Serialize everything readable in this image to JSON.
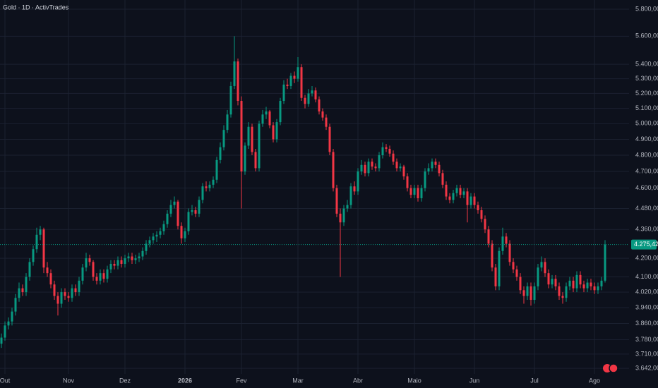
{
  "chart_data": {
    "type": "candlestick",
    "title": "Gold · 1D · ActivTrades",
    "log_scale": true,
    "grid": true,
    "up_color": "#089981",
    "down_color": "#f23645",
    "ylim": [
      3583,
      5869
    ],
    "yticks": [
      {
        "value": 3642,
        "label": "3.642,00"
      },
      {
        "value": 3710,
        "label": "3.710,00"
      },
      {
        "value": 3780,
        "label": "3.780,00"
      },
      {
        "value": 3860,
        "label": "3.860,00"
      },
      {
        "value": 3940,
        "label": "3.940,00"
      },
      {
        "value": 4020,
        "label": "4.020,00"
      },
      {
        "value": 4100,
        "label": "4.100,00"
      },
      {
        "value": 4200,
        "label": "4.200,00"
      },
      {
        "value": 4360,
        "label": "4.360,00"
      },
      {
        "value": 4480,
        "label": "4.480,00"
      },
      {
        "value": 4600,
        "label": "4.600,00"
      },
      {
        "value": 4700,
        "label": "4.700,00"
      },
      {
        "value": 4800,
        "label": "4.800,00"
      },
      {
        "value": 4900,
        "label": "4.900,00"
      },
      {
        "value": 5000,
        "label": "5.000,00"
      },
      {
        "value": 5100,
        "label": "5.100,00"
      },
      {
        "value": 5200,
        "label": "5.200,00"
      },
      {
        "value": 5300,
        "label": "5.300,00"
      },
      {
        "value": 5400,
        "label": "5.400,00"
      },
      {
        "value": 5600,
        "label": "5.600,00"
      },
      {
        "value": 5800,
        "label": "5.800,00"
      }
    ],
    "xticks": [
      {
        "value": 1,
        "label": "Out"
      },
      {
        "value": 19,
        "label": "Nov"
      },
      {
        "value": 35,
        "label": "Dez"
      },
      {
        "value": 52,
        "label": "2026"
      },
      {
        "value": 68,
        "label": "Fev"
      },
      {
        "value": 84,
        "label": "Mar"
      },
      {
        "value": 101,
        "label": "Abr"
      },
      {
        "value": 117,
        "label": "Maio"
      },
      {
        "value": 134,
        "label": "Jun"
      },
      {
        "value": 151,
        "label": "Jul"
      },
      {
        "value": 168,
        "label": "Ago"
      }
    ],
    "last_price": {
      "value": 4275.42,
      "label": "4.275,42"
    },
    "candles": [
      [
        3760,
        3810,
        3740,
        3790
      ],
      [
        3790,
        3870,
        3775,
        3850
      ],
      [
        3850,
        3890,
        3830,
        3870
      ],
      [
        3870,
        3940,
        3850,
        3920
      ],
      [
        3920,
        4010,
        3900,
        3990
      ],
      [
        3990,
        4070,
        3970,
        4040
      ],
      [
        4040,
        4060,
        4000,
        4020
      ],
      [
        4020,
        4120,
        4000,
        4100
      ],
      [
        4100,
        4200,
        4080,
        4180
      ],
      [
        4180,
        4270,
        4160,
        4250
      ],
      [
        4250,
        4370,
        4230,
        4330
      ],
      [
        4330,
        4380,
        4300,
        4360
      ],
      [
        4360,
        4370,
        4120,
        4150
      ],
      [
        4150,
        4180,
        4100,
        4120
      ],
      [
        4120,
        4140,
        4040,
        4060
      ],
      [
        4060,
        4080,
        3980,
        4000
      ],
      [
        4000,
        4020,
        3900,
        3960
      ],
      [
        3960,
        4040,
        3940,
        4020
      ],
      [
        4020,
        4040,
        3980,
        4000
      ],
      [
        4000,
        4020,
        3970,
        3990
      ],
      [
        3990,
        4060,
        3970,
        4040
      ],
      [
        4040,
        4060,
        4000,
        4020
      ],
      [
        4020,
        4100,
        4000,
        4080
      ],
      [
        4080,
        4170,
        4060,
        4150
      ],
      [
        4150,
        4230,
        4130,
        4200
      ],
      [
        4200,
        4220,
        4160,
        4180
      ],
      [
        4180,
        4190,
        4080,
        4100
      ],
      [
        4100,
        4120,
        4060,
        4080
      ],
      [
        4080,
        4140,
        4060,
        4120
      ],
      [
        4120,
        4140,
        4070,
        4090
      ],
      [
        4090,
        4160,
        4070,
        4140
      ],
      [
        4140,
        4190,
        4120,
        4170
      ],
      [
        4170,
        4190,
        4140,
        4160
      ],
      [
        4160,
        4210,
        4140,
        4190
      ],
      [
        4190,
        4210,
        4150,
        4170
      ],
      [
        4170,
        4220,
        4150,
        4200
      ],
      [
        4200,
        4230,
        4180,
        4210
      ],
      [
        4210,
        4230,
        4170,
        4190
      ],
      [
        4190,
        4220,
        4170,
        4200
      ],
      [
        4200,
        4230,
        4180,
        4210
      ],
      [
        4210,
        4260,
        4190,
        4240
      ],
      [
        4240,
        4300,
        4220,
        4280
      ],
      [
        4280,
        4320,
        4260,
        4300
      ],
      [
        4300,
        4340,
        4280,
        4320
      ],
      [
        4320,
        4350,
        4290,
        4330
      ],
      [
        4330,
        4370,
        4310,
        4350
      ],
      [
        4350,
        4410,
        4330,
        4390
      ],
      [
        4390,
        4470,
        4370,
        4450
      ],
      [
        4450,
        4530,
        4430,
        4500
      ],
      [
        4500,
        4550,
        4480,
        4520
      ],
      [
        4520,
        4530,
        4360,
        4380
      ],
      [
        4380,
        4400,
        4280,
        4310
      ],
      [
        4310,
        4370,
        4290,
        4350
      ],
      [
        4350,
        4480,
        4330,
        4460
      ],
      [
        4460,
        4500,
        4440,
        4470
      ],
      [
        4470,
        4490,
        4430,
        4450
      ],
      [
        4450,
        4550,
        4430,
        4530
      ],
      [
        4530,
        4630,
        4510,
        4610
      ],
      [
        4610,
        4640,
        4580,
        4600
      ],
      [
        4600,
        4640,
        4580,
        4620
      ],
      [
        4620,
        4670,
        4600,
        4650
      ],
      [
        4650,
        4790,
        4630,
        4770
      ],
      [
        4770,
        4880,
        4750,
        4850
      ],
      [
        4850,
        4990,
        4830,
        4960
      ],
      [
        4960,
        5090,
        4940,
        5060
      ],
      [
        5060,
        5280,
        5040,
        5250
      ],
      [
        5250,
        5600,
        5230,
        5420
      ],
      [
        5420,
        5440,
        5120,
        5150
      ],
      [
        5150,
        5180,
        4480,
        4700
      ],
      [
        4700,
        4880,
        4680,
        4860
      ],
      [
        4860,
        5010,
        4840,
        4980
      ],
      [
        4980,
        5000,
        4800,
        4820
      ],
      [
        4820,
        4840,
        4700,
        4720
      ],
      [
        4720,
        5020,
        4700,
        5000
      ],
      [
        5000,
        5090,
        4980,
        5060
      ],
      [
        5060,
        5110,
        5030,
        5080
      ],
      [
        5080,
        5090,
        4970,
        4990
      ],
      [
        4990,
        5010,
        4880,
        4900
      ],
      [
        4900,
        5030,
        4880,
        5010
      ],
      [
        5010,
        5170,
        4990,
        5150
      ],
      [
        5150,
        5290,
        5130,
        5260
      ],
      [
        5260,
        5300,
        5230,
        5250
      ],
      [
        5250,
        5340,
        5230,
        5320
      ],
      [
        5320,
        5350,
        5270,
        5300
      ],
      [
        5300,
        5450,
        5280,
        5380
      ],
      [
        5380,
        5400,
        5150,
        5170
      ],
      [
        5170,
        5190,
        5100,
        5130
      ],
      [
        5130,
        5230,
        5110,
        5200
      ],
      [
        5200,
        5250,
        5180,
        5220
      ],
      [
        5220,
        5240,
        5140,
        5160
      ],
      [
        5160,
        5180,
        5060,
        5080
      ],
      [
        5080,
        5100,
        5020,
        5040
      ],
      [
        5040,
        5060,
        4960,
        4980
      ],
      [
        4980,
        5000,
        4800,
        4820
      ],
      [
        4820,
        4840,
        4580,
        4600
      ],
      [
        4600,
        4620,
        4430,
        4450
      ],
      [
        4450,
        4480,
        4100,
        4400
      ],
      [
        4400,
        4500,
        4380,
        4480
      ],
      [
        4480,
        4530,
        4460,
        4500
      ],
      [
        4500,
        4630,
        4480,
        4610
      ],
      [
        4610,
        4640,
        4560,
        4580
      ],
      [
        4580,
        4720,
        4560,
        4700
      ],
      [
        4700,
        4770,
        4680,
        4740
      ],
      [
        4740,
        4760,
        4670,
        4690
      ],
      [
        4690,
        4780,
        4670,
        4760
      ],
      [
        4760,
        4780,
        4710,
        4730
      ],
      [
        4730,
        4750,
        4700,
        4720
      ],
      [
        4720,
        4820,
        4700,
        4800
      ],
      [
        4800,
        4880,
        4780,
        4850
      ],
      [
        4850,
        4870,
        4820,
        4840
      ],
      [
        4840,
        4860,
        4790,
        4810
      ],
      [
        4810,
        4830,
        4740,
        4760
      ],
      [
        4760,
        4780,
        4700,
        4720
      ],
      [
        4720,
        4750,
        4700,
        4730
      ],
      [
        4730,
        4740,
        4650,
        4670
      ],
      [
        4670,
        4690,
        4580,
        4600
      ],
      [
        4600,
        4620,
        4540,
        4560
      ],
      [
        4560,
        4620,
        4540,
        4600
      ],
      [
        4600,
        4620,
        4520,
        4540
      ],
      [
        4540,
        4620,
        4520,
        4600
      ],
      [
        4600,
        4720,
        4580,
        4700
      ],
      [
        4700,
        4750,
        4680,
        4720
      ],
      [
        4720,
        4780,
        4700,
        4760
      ],
      [
        4760,
        4780,
        4720,
        4740
      ],
      [
        4740,
        4760,
        4670,
        4690
      ],
      [
        4690,
        4710,
        4600,
        4620
      ],
      [
        4620,
        4640,
        4530,
        4550
      ],
      [
        4550,
        4570,
        4510,
        4530
      ],
      [
        4530,
        4590,
        4510,
        4570
      ],
      [
        4570,
        4620,
        4550,
        4600
      ],
      [
        4600,
        4620,
        4540,
        4560
      ],
      [
        4560,
        4600,
        4540,
        4580
      ],
      [
        4580,
        4600,
        4400,
        4500
      ],
      [
        4500,
        4570,
        4480,
        4550
      ],
      [
        4550,
        4570,
        4480,
        4500
      ],
      [
        4500,
        4520,
        4450,
        4470
      ],
      [
        4470,
        4490,
        4400,
        4420
      ],
      [
        4420,
        4440,
        4340,
        4360
      ],
      [
        4360,
        4380,
        4260,
        4280
      ],
      [
        4280,
        4300,
        4130,
        4150
      ],
      [
        4150,
        4170,
        4030,
        4050
      ],
      [
        4050,
        4260,
        4030,
        4240
      ],
      [
        4240,
        4370,
        4220,
        4320
      ],
      [
        4320,
        4340,
        4260,
        4280
      ],
      [
        4280,
        4300,
        4160,
        4180
      ],
      [
        4180,
        4200,
        4120,
        4140
      ],
      [
        4140,
        4160,
        4080,
        4100
      ],
      [
        4100,
        4120,
        4010,
        4030
      ],
      [
        4030,
        4050,
        3960,
        4000
      ],
      [
        4000,
        4070,
        3980,
        4050
      ],
      [
        4050,
        4070,
        3950,
        3980
      ],
      [
        3980,
        4070,
        3960,
        4050
      ],
      [
        4050,
        4170,
        4030,
        4150
      ],
      [
        4150,
        4210,
        4130,
        4180
      ],
      [
        4180,
        4200,
        4100,
        4120
      ],
      [
        4120,
        4140,
        4040,
        4060
      ],
      [
        4060,
        4110,
        4040,
        4090
      ],
      [
        4090,
        4110,
        4030,
        4050
      ],
      [
        4050,
        4070,
        3980,
        4000
      ],
      [
        4000,
        4020,
        3960,
        3990
      ],
      [
        3990,
        4070,
        3970,
        4050
      ],
      [
        4050,
        4100,
        4030,
        4080
      ],
      [
        4080,
        4100,
        4020,
        4040
      ],
      [
        4040,
        4130,
        4020,
        4110
      ],
      [
        4110,
        4130,
        4040,
        4060
      ],
      [
        4060,
        4080,
        4020,
        4040
      ],
      [
        4040,
        4090,
        4020,
        4070
      ],
      [
        4070,
        4090,
        4030,
        4050
      ],
      [
        4050,
        4070,
        4010,
        4030
      ],
      [
        4030,
        4070,
        4010,
        4050
      ],
      [
        4050,
        4100,
        4030,
        4080
      ],
      [
        4080,
        4300,
        4070,
        4275.42
      ]
    ]
  }
}
